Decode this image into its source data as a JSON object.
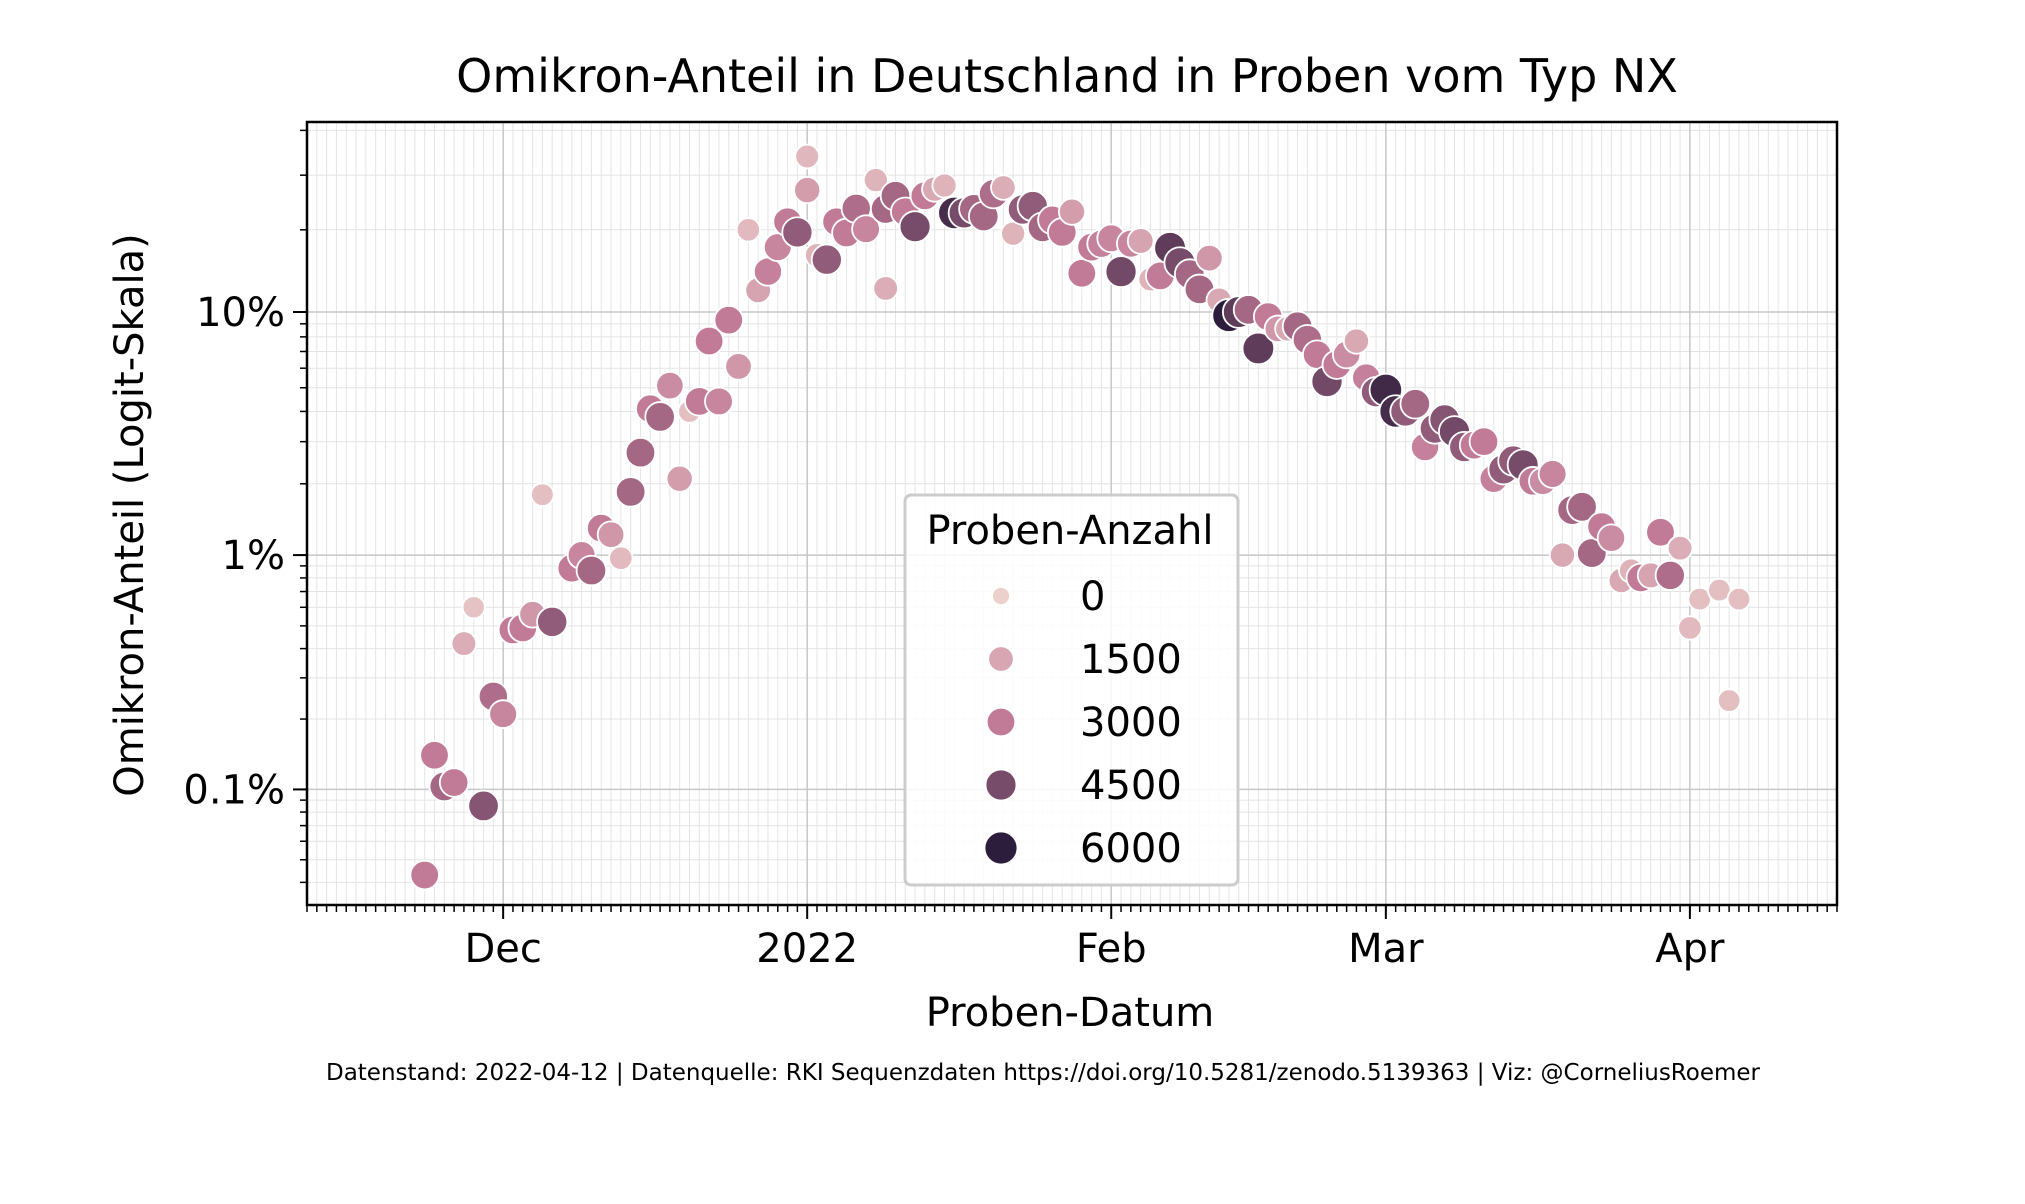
{
  "chart_data": {
    "type": "scatter",
    "title": "Omikron-Anteil in Deutschland in Proben vom Typ NX",
    "xlabel": "Proben-Datum",
    "ylabel": "Omikron-Anteil (Logit-Skala)",
    "y_scale": "logit",
    "grid": true,
    "xlim": [
      "2021-11-11",
      "2022-04-16"
    ],
    "ylim_percent": [
      0.032,
      42
    ],
    "x_ticks": [
      {
        "date": "2021-12-01",
        "label": "Dec"
      },
      {
        "date": "2022-01-01",
        "label": "2022"
      },
      {
        "date": "2022-02-01",
        "label": "Feb"
      },
      {
        "date": "2022-03-01",
        "label": "Mar"
      },
      {
        "date": "2022-04-01",
        "label": "Apr"
      }
    ],
    "y_ticks": [
      {
        "value": 0.1,
        "label": "0.1%"
      },
      {
        "value": 1,
        "label": "1%"
      },
      {
        "value": 10,
        "label": "10%"
      }
    ],
    "legend": {
      "title": "Proben-Anzahl",
      "placement": "lower center",
      "entries": [
        {
          "label": "0",
          "value": 0
        },
        {
          "label": "1500",
          "value": 1500
        },
        {
          "label": "3000",
          "value": 3000
        },
        {
          "label": "4500",
          "value": 4500
        },
        {
          "label": "6000",
          "value": 6000
        }
      ]
    },
    "color_scale": {
      "low": "#ecd0cc",
      "mid": "#c27b97",
      "high": "#2c1d3c"
    },
    "footnote": "Datenstand: 2022-04-12 | Datenquelle: RKI Sequenzdaten https://doi.org/10.5281/zenodo.5139363 | Viz: @CorneliusRoemer",
    "series": [
      {
        "points": [
          [
            "2021-11-23",
            0.043,
            3000
          ],
          [
            "2021-11-24",
            0.14,
            3000
          ],
          [
            "2021-11-25",
            0.103,
            3600
          ],
          [
            "2021-11-26",
            0.107,
            3000
          ],
          [
            "2021-11-27",
            0.42,
            1200
          ],
          [
            "2021-11-28",
            0.6,
            500
          ],
          [
            "2021-11-29",
            0.085,
            4200
          ],
          [
            "2021-11-30",
            0.25,
            3400
          ],
          [
            "2021-12-01",
            0.21,
            2600
          ],
          [
            "2021-12-02",
            0.48,
            3000
          ],
          [
            "2021-12-03",
            0.49,
            3000
          ],
          [
            "2021-12-04",
            0.56,
            2000
          ],
          [
            "2021-12-05",
            1.8,
            600
          ],
          [
            "2021-12-06",
            0.52,
            4000
          ],
          [
            "2021-12-08",
            0.88,
            3000
          ],
          [
            "2021-12-09",
            1.0,
            2600
          ],
          [
            "2021-12-10",
            0.86,
            3600
          ],
          [
            "2021-12-11",
            1.3,
            3000
          ],
          [
            "2021-12-12",
            1.22,
            2000
          ],
          [
            "2021-12-13",
            0.97,
            800
          ],
          [
            "2021-12-14",
            1.85,
            3600
          ],
          [
            "2021-12-15",
            2.7,
            3600
          ],
          [
            "2021-12-16",
            4.1,
            3000
          ],
          [
            "2021-12-17",
            3.8,
            3600
          ],
          [
            "2021-12-18",
            5.1,
            2400
          ],
          [
            "2021-12-19",
            2.1,
            1800
          ],
          [
            "2021-12-20",
            4.0,
            600
          ],
          [
            "2021-12-21",
            4.4,
            3000
          ],
          [
            "2021-12-22",
            7.7,
            3000
          ],
          [
            "2021-12-23",
            4.4,
            2600
          ],
          [
            "2021-12-24",
            9.3,
            3000
          ],
          [
            "2021-12-25",
            6.1,
            2000
          ],
          [
            "2021-12-26",
            20.0,
            800
          ],
          [
            "2021-12-27",
            12.1,
            1600
          ],
          [
            "2021-12-28",
            14.2,
            2800
          ],
          [
            "2021-12-29",
            17.4,
            2600
          ],
          [
            "2021-12-30",
            21.3,
            3000
          ],
          [
            "2021-12-31",
            19.6,
            4000
          ],
          [
            "2022-01-01",
            27.0,
            1800
          ],
          [
            "2022-01-01",
            34.0,
            900
          ],
          [
            "2022-01-02",
            16.3,
            1000
          ],
          [
            "2022-01-03",
            15.7,
            4000
          ],
          [
            "2022-01-04",
            21.3,
            3000
          ],
          [
            "2022-01-05",
            19.5,
            3000
          ],
          [
            "2022-01-06",
            23.6,
            3400
          ],
          [
            "2022-01-07",
            20.1,
            2600
          ],
          [
            "2022-01-08",
            29.0,
            1000
          ],
          [
            "2022-01-09",
            12.3,
            1200
          ],
          [
            "2022-01-09",
            23.5,
            3600
          ],
          [
            "2022-01-10",
            25.9,
            3600
          ],
          [
            "2022-01-11",
            23.0,
            3000
          ],
          [
            "2022-01-12",
            20.5,
            4500
          ],
          [
            "2022-01-13",
            25.9,
            3000
          ],
          [
            "2022-01-14",
            27.2,
            1400
          ],
          [
            "2022-01-15",
            27.9,
            1000
          ],
          [
            "2022-01-16",
            22.8,
            5500
          ],
          [
            "2022-01-17",
            22.8,
            4500
          ],
          [
            "2022-01-18",
            23.5,
            3600
          ],
          [
            "2022-01-19",
            22.2,
            3600
          ],
          [
            "2022-01-20",
            26.3,
            3400
          ],
          [
            "2022-01-21",
            27.5,
            1200
          ],
          [
            "2022-01-22",
            19.4,
            1000
          ],
          [
            "2022-01-23",
            23.4,
            4000
          ],
          [
            "2022-01-24",
            24.0,
            4000
          ],
          [
            "2022-01-25",
            20.4,
            3600
          ],
          [
            "2022-01-26",
            21.6,
            3000
          ],
          [
            "2022-01-27",
            19.6,
            3000
          ],
          [
            "2022-01-28",
            23.0,
            1800
          ],
          [
            "2022-01-29",
            14.0,
            3000
          ],
          [
            "2022-01-30",
            17.4,
            3000
          ],
          [
            "2022-01-31",
            17.9,
            2800
          ],
          [
            "2022-02-01",
            18.7,
            2600
          ],
          [
            "2022-02-02",
            14.2,
            4600
          ],
          [
            "2022-02-03",
            17.9,
            2600
          ],
          [
            "2022-02-04",
            18.3,
            1600
          ],
          [
            "2022-02-05",
            13.3,
            1000
          ],
          [
            "2022-02-06",
            13.7,
            3000
          ],
          [
            "2022-02-07",
            17.3,
            5000
          ],
          [
            "2022-02-08",
            15.3,
            4500
          ],
          [
            "2022-02-09",
            13.9,
            3600
          ],
          [
            "2022-02-10",
            12.2,
            3600
          ],
          [
            "2022-02-11",
            15.9,
            2000
          ],
          [
            "2022-02-12",
            11.1,
            1400
          ],
          [
            "2022-02-13",
            9.7,
            6200
          ],
          [
            "2022-02-14",
            10.0,
            5000
          ],
          [
            "2022-02-15",
            10.2,
            3600
          ],
          [
            "2022-02-16",
            7.2,
            5000
          ],
          [
            "2022-02-17",
            9.6,
            3000
          ],
          [
            "2022-02-18",
            8.6,
            2000
          ],
          [
            "2022-02-19",
            8.6,
            1400
          ],
          [
            "2022-02-20",
            8.8,
            3600
          ],
          [
            "2022-02-21",
            7.8,
            3400
          ],
          [
            "2022-02-22",
            6.8,
            3000
          ],
          [
            "2022-02-23",
            5.3,
            4600
          ],
          [
            "2022-02-24",
            6.2,
            3000
          ],
          [
            "2022-02-25",
            6.8,
            2400
          ],
          [
            "2022-02-26",
            7.7,
            1400
          ],
          [
            "2022-02-27",
            5.5,
            2800
          ],
          [
            "2022-02-28",
            4.8,
            4000
          ],
          [
            "2022-03-01",
            4.9,
            5600
          ],
          [
            "2022-03-02",
            4.0,
            5500
          ],
          [
            "2022-03-03",
            4.0,
            4000
          ],
          [
            "2022-03-04",
            4.3,
            3600
          ],
          [
            "2022-03-05",
            2.85,
            2800
          ],
          [
            "2022-03-06",
            3.4,
            4000
          ],
          [
            "2022-03-07",
            3.7,
            4200
          ],
          [
            "2022-03-08",
            3.3,
            4600
          ],
          [
            "2022-03-09",
            2.85,
            4000
          ],
          [
            "2022-03-10",
            2.9,
            3000
          ],
          [
            "2022-03-11",
            3.0,
            3000
          ],
          [
            "2022-03-12",
            2.1,
            2800
          ],
          [
            "2022-03-13",
            2.3,
            4000
          ],
          [
            "2022-03-14",
            2.5,
            4000
          ],
          [
            "2022-03-15",
            2.4,
            4500
          ],
          [
            "2022-03-16",
            2.05,
            3000
          ],
          [
            "2022-03-17",
            2.05,
            2400
          ],
          [
            "2022-03-18",
            2.2,
            2600
          ],
          [
            "2022-03-19",
            1.0,
            1400
          ],
          [
            "2022-03-20",
            1.55,
            3600
          ],
          [
            "2022-03-21",
            1.6,
            3600
          ],
          [
            "2022-03-22",
            1.02,
            3600
          ],
          [
            "2022-03-23",
            1.32,
            3000
          ],
          [
            "2022-03-24",
            1.18,
            2400
          ],
          [
            "2022-03-25",
            0.78,
            1400
          ],
          [
            "2022-03-26",
            0.86,
            1000
          ],
          [
            "2022-03-27",
            0.8,
            3000
          ],
          [
            "2022-03-28",
            0.82,
            1600
          ],
          [
            "2022-03-29",
            1.25,
            3000
          ],
          [
            "2022-03-30",
            0.82,
            3400
          ],
          [
            "2022-03-31",
            1.07,
            1200
          ],
          [
            "2022-04-01",
            0.49,
            800
          ],
          [
            "2022-04-02",
            0.65,
            600
          ],
          [
            "2022-04-04",
            0.71,
            600
          ],
          [
            "2022-04-05",
            0.24,
            600
          ],
          [
            "2022-04-06",
            0.65,
            600
          ]
        ]
      }
    ]
  }
}
